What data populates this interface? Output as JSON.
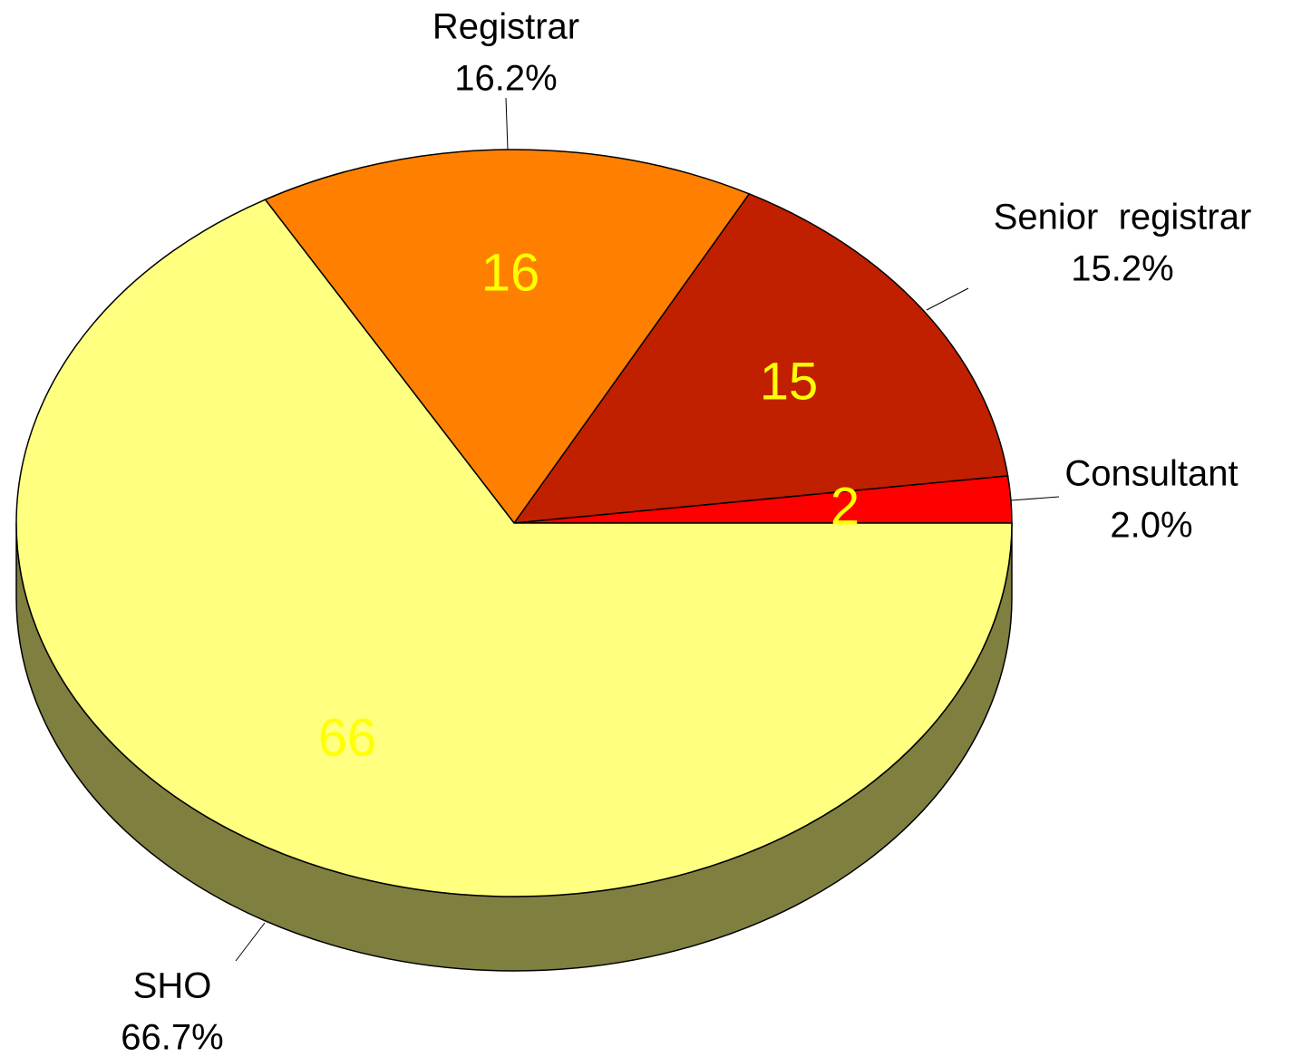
{
  "chart_data": {
    "type": "pie",
    "categories": [
      "SHO",
      "Consultant",
      "Senior  registrar",
      "Registrar"
    ],
    "values": [
      66,
      2,
      15,
      16
    ],
    "percents": [
      66.7,
      2.0,
      15.2,
      16.2
    ],
    "percent_labels": [
      "66.7%",
      "2.0%",
      "15.2%",
      "16.2%"
    ],
    "colors": [
      "#ffff80",
      "#ff0000",
      "#c02000",
      "#ff8000"
    ]
  }
}
